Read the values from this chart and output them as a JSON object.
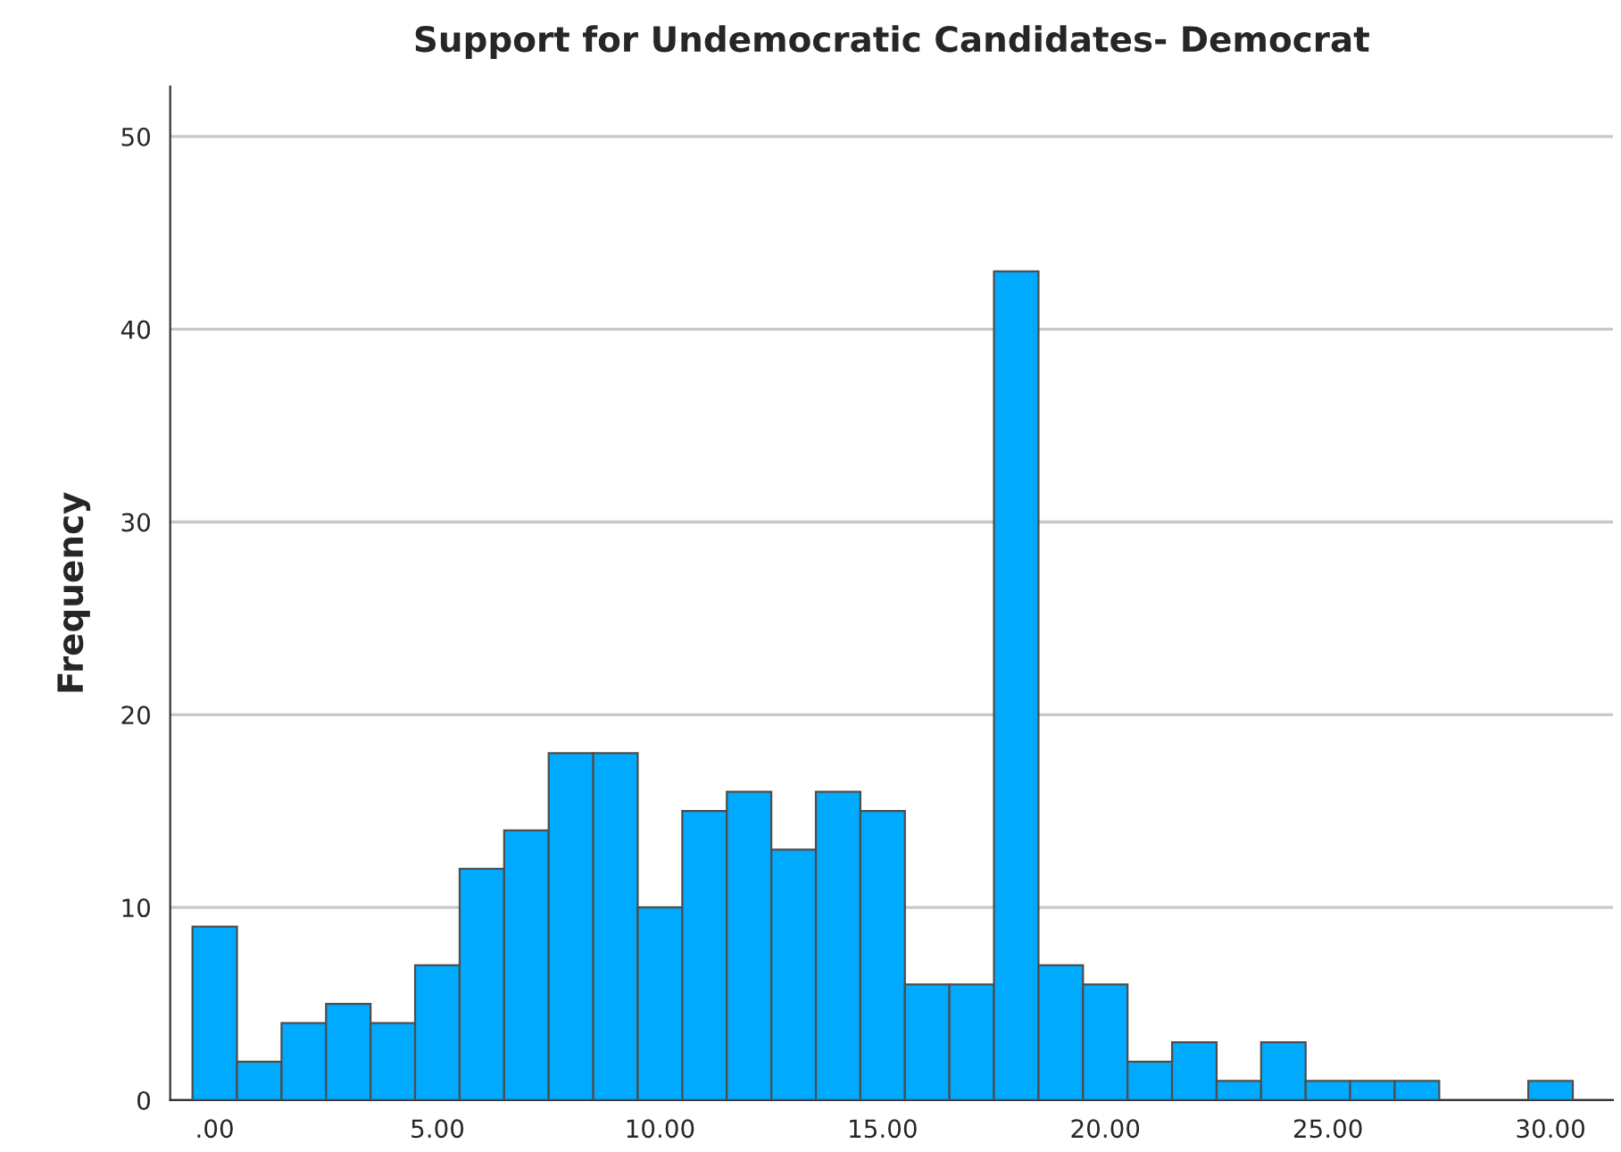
{
  "chart_data": {
    "type": "histogram",
    "title": "Support for Undemocratic Candidates- Democrat",
    "ylabel": "Frequency",
    "bins": [
      -0.5,
      0.5,
      1.5,
      2.5,
      3.5,
      4.5,
      5.5,
      6.5,
      7.5,
      8.5,
      9.5,
      10.5,
      11.5,
      12.5,
      13.5,
      14.5,
      15.5,
      16.5,
      17.5,
      18.5,
      19.5,
      20.5,
      21.5,
      22.5,
      23.5,
      24.5,
      25.5,
      26.5,
      27.5,
      28.5,
      29.5,
      30.5
    ],
    "values": [
      9,
      2,
      4,
      5,
      4,
      7,
      12,
      14,
      18,
      18,
      10,
      15,
      16,
      13,
      16,
      15,
      6,
      6,
      43,
      7,
      6,
      2,
      3,
      1,
      3,
      1,
      1,
      1,
      0,
      0,
      1
    ],
    "color": "#00aaff",
    "xlim": [
      -1,
      31.4
    ],
    "ylim": [
      0,
      52.6
    ],
    "xticks": [
      {
        "value": 0,
        "label": ".00"
      },
      {
        "value": 5,
        "label": "5.00"
      },
      {
        "value": 10,
        "label": "10.00"
      },
      {
        "value": 15,
        "label": "15.00"
      },
      {
        "value": 20,
        "label": "20.00"
      },
      {
        "value": 25,
        "label": "25.00"
      },
      {
        "value": 30,
        "label": "30.00"
      }
    ],
    "yticks": [
      0,
      10,
      20,
      30,
      40,
      50
    ],
    "grid": "y"
  }
}
